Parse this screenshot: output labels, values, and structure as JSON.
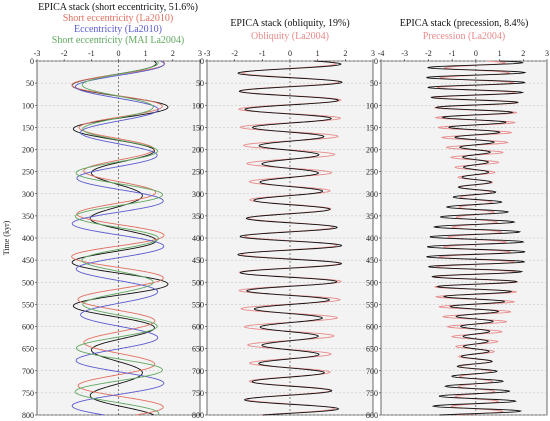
{
  "colors": {
    "stack": "#111111",
    "la2010_short": "#e07060",
    "la2010_ecc": "#5a5ad0",
    "mai": "#60a860",
    "orbital": "#e88a8a",
    "panel_bg": "#f3f3f3",
    "grid": "#bbbbbb"
  },
  "chart_data": [
    {
      "type": "line",
      "title_lines": [
        "EPICA stack (short eccentricity, 51.6%)",
        "Short eccentricity (La2010)",
        "Eccentricity (La2010)",
        "Short eccentricity (MAI La2004)"
      ],
      "ylabel": "Time (kyr)",
      "x_ticks": [
        "-3",
        "-2",
        "-1",
        "0",
        "1",
        "2",
        "3"
      ],
      "y_ticks": [
        "0",
        "50",
        "100",
        "150",
        "200",
        "250",
        "300",
        "350",
        "400",
        "450",
        "500",
        "550",
        "600",
        "650",
        "700",
        "750",
        "800"
      ],
      "xlim": [
        -3,
        3
      ],
      "ylim": [
        0,
        800
      ],
      "grid": true,
      "series": [
        {
          "color_key": "stack",
          "period_kyr": 100,
          "amplitude": 1.35,
          "phase": 1.3,
          "envelope": 0.35
        },
        {
          "color_key": "la2010_short",
          "period_kyr": 97,
          "amplitude": 1.5,
          "phase": 1.2,
          "envelope": 0.15
        },
        {
          "color_key": "la2010_ecc",
          "period_kyr": 103,
          "amplitude": 1.55,
          "phase": 1.15,
          "envelope": 0.1
        },
        {
          "color_key": "mai",
          "period_kyr": 99,
          "amplitude": 1.45,
          "phase": 1.25,
          "envelope": 0.12
        }
      ]
    },
    {
      "type": "line",
      "title_lines": [
        "EPICA stack (obliquity, 19%)",
        "Obliquity (La2004)"
      ],
      "x_ticks": [
        "-3",
        "-2",
        "-1",
        "0",
        "1",
        "2",
        "3"
      ],
      "y_ticks": [
        "0",
        "50",
        "100",
        "150",
        "200",
        "250",
        "300",
        "350",
        "400",
        "450",
        "500",
        "550",
        "600",
        "650",
        "700",
        "750",
        "800"
      ],
      "xlim": [
        -3,
        3
      ],
      "ylim": [
        0,
        800
      ],
      "grid": true,
      "series": [
        {
          "color_key": "orbital",
          "period_kyr": 41,
          "amplitude": 1.65,
          "phase": 0.6,
          "envelope": 0.12
        },
        {
          "color_key": "stack",
          "period_kyr": 41,
          "amplitude": 1.45,
          "phase": 0.5,
          "envelope": 0.3
        }
      ]
    },
    {
      "type": "line",
      "title_lines": [
        "EPICA stack (precession, 8.4%)",
        "Precession (La2004)"
      ],
      "x_ticks": [
        "-4",
        "-3",
        "-2",
        "-1",
        "0",
        "1",
        "2",
        "3"
      ],
      "y_ticks": [
        "0",
        "50",
        "100",
        "150",
        "200",
        "250",
        "300",
        "350",
        "400",
        "450",
        "500",
        "550",
        "600",
        "650",
        "700",
        "750",
        "800"
      ],
      "xlim": [
        -4,
        3
      ],
      "ylim": [
        0,
        800
      ],
      "grid": true,
      "series": [
        {
          "color_key": "orbital",
          "period_kyr": 22.5,
          "amplitude": 1.2,
          "phase": 0.4,
          "envelope": 0.45
        },
        {
          "color_key": "stack",
          "period_kyr": 22.5,
          "amplitude": 1.3,
          "phase": 0.55,
          "envelope": 0.6
        }
      ]
    }
  ]
}
